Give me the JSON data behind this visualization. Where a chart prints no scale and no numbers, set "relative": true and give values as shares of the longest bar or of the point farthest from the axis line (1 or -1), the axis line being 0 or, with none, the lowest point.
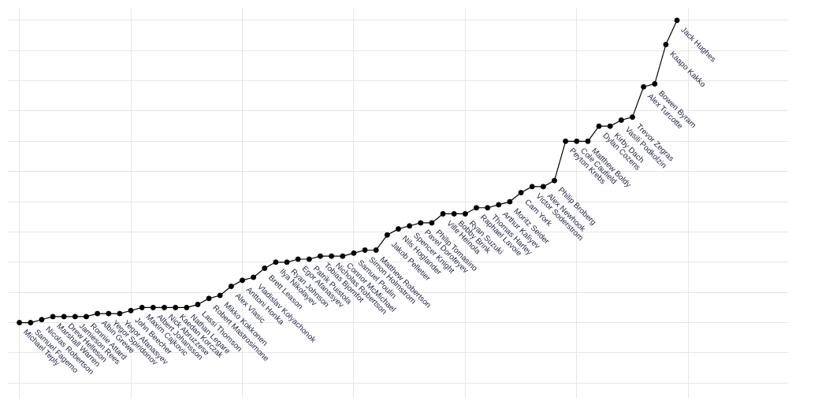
{
  "chart_data": {
    "type": "line",
    "relative": true,
    "grid": true,
    "marker": "circle",
    "line_style": "solid",
    "tick_labels": false,
    "categories": [
      null,
      null,
      null,
      null,
      null,
      null,
      null,
      null,
      null,
      null,
      null,
      null,
      null,
      null,
      null,
      null,
      null,
      null,
      null,
      null,
      null,
      null,
      null,
      null,
      null,
      null,
      null,
      null,
      null,
      null,
      null,
      null,
      null,
      null,
      null,
      null,
      null,
      null,
      null,
      null,
      null,
      null,
      null,
      null,
      null,
      null,
      null,
      null,
      null,
      null,
      null,
      null,
      null,
      null,
      null,
      null,
      null,
      null,
      null,
      null
    ],
    "series": [
      {
        "color": "#000000",
        "values": [
          0,
          0,
          0.01,
          0.02,
          0.02,
          0.02,
          0.02,
          0.03,
          0.03,
          0.03,
          0.04,
          0.05,
          0.05,
          0.05,
          0.05,
          0.05,
          0.06,
          0.08,
          0.09,
          0.12,
          0.14,
          0.15,
          0.18,
          0.2,
          0.2,
          0.21,
          0.21,
          0.22,
          0.22,
          0.22,
          0.23,
          0.24,
          0.24,
          0.29,
          0.31,
          0.32,
          0.33,
          0.33,
          0.36,
          0.36,
          0.36,
          0.38,
          0.38,
          0.39,
          0.4,
          0.43,
          0.45,
          0.45,
          0.47,
          0.6,
          0.6,
          0.6,
          0.65,
          0.65,
          0.67,
          0.68,
          0.78,
          0.79,
          0.92,
          1
        ]
      }
    ],
    "annotations": [
      "Michael Teply",
      "Samuel Fagemo",
      "Nicolas Robertson",
      "Marshall Warren",
      "Drew Helleson",
      "Jamieson Rees",
      "Ronnie Attard",
      "Albin Grewe",
      "Yegor Spiridonov",
      "Yegor Afanasyev",
      "John Beecher",
      "Maxim Cajkovic",
      "Albert Johansson",
      "Nick Abruzzese",
      "Kaedan Korczak",
      "Nathan Legare",
      "Lassi Thomson",
      "Robert Mastrosimone",
      "Mikko Kokkonen",
      "Alex Vlasic",
      "Anttoni Honka",
      "Vladislav Kolyachonok",
      "Brett Leason",
      "Ilya Nikolayev",
      "Ryan Johnson",
      "Egor Afanasyev",
      "Patrik Puistola",
      "Tobias Bjornfot",
      "Nicholas Robertson",
      "Connor McMichael",
      "Samuel Poulin",
      "Simon Holmstrom",
      "Matthew Robertson",
      "Jakob Pelletier",
      "Nils Hoglander",
      "Spencer Knight",
      "Pavel Dorofeyev",
      "Philip Tomasino",
      "Ville Heinola",
      "Bobby Brink",
      "Ryan Suzuki",
      "Raphael Lavoie",
      "Thomas Harley",
      "Arthur Kaliyev",
      "Moritz Seider",
      "Cam York",
      "Victor Soderstrom",
      "Alex Newhook",
      "Philip Broberg",
      "Peyton Krebs",
      "Cole Caufield",
      "Matthew Boldy",
      "Dylan Cozens",
      "Kirby Dach",
      "Vasili Podkolzin",
      "Trevor Zegras",
      "Alex Turcotte",
      "Bowen Byram",
      "Kaapo Kakko",
      "Jack Hughes"
    ]
  }
}
